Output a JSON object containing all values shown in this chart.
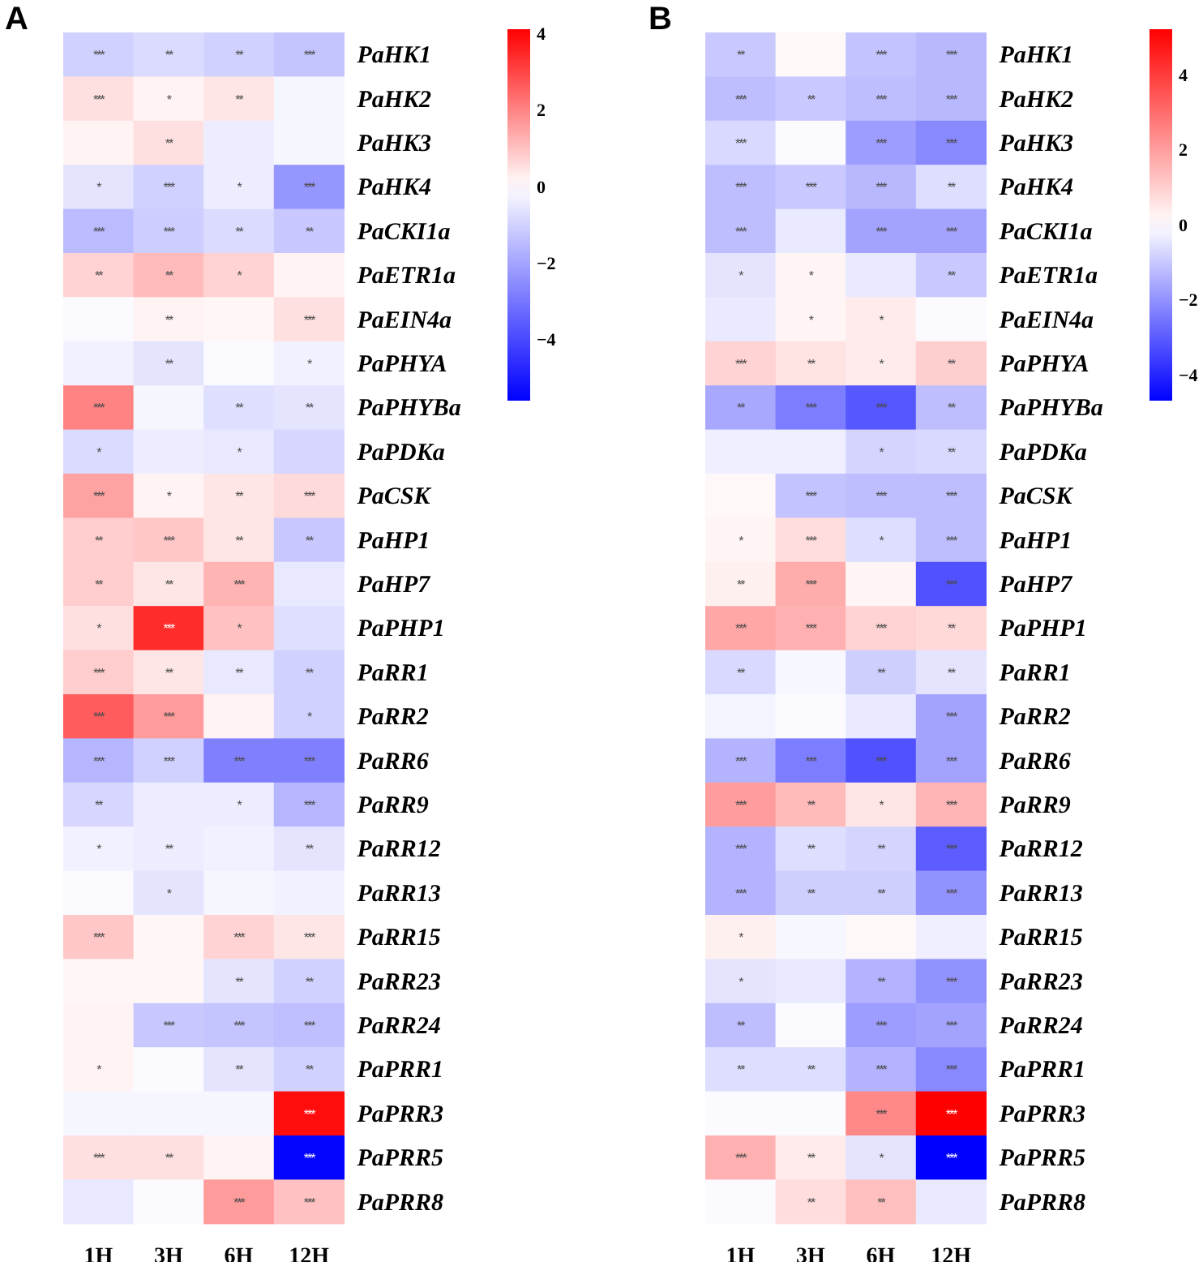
{
  "chart_data": [
    {
      "type": "heatmap",
      "title": "A",
      "categories": [
        "1H",
        "3H",
        "6H",
        "12H"
      ],
      "y_categories": [
        "PaHK1",
        "PaHK2",
        "PaHK3",
        "PaHK4",
        "PaCKI1a",
        "PaETR1a",
        "PaEIN4a",
        "PaPHYA",
        "PaPHYBa",
        "PaPDKa",
        "PaCSK",
        "PaHP1",
        "PaHP7",
        "PaPHP1",
        "PaRR1",
        "PaRR2",
        "PaRR6",
        "PaRR9",
        "PaRR12",
        "PaRR13",
        "PaRR15",
        "PaRR23",
        "PaRR24",
        "PaPRR1",
        "PaPRR3",
        "PaPRR5",
        "PaPRR8"
      ],
      "cells": [
        [
          -1.0,
          -0.8,
          -1.0,
          -1.3
        ],
        [
          0.5,
          0.2,
          0.4,
          -0.2
        ],
        [
          0.2,
          0.5,
          -0.4,
          -0.2
        ],
        [
          -0.6,
          -1.0,
          -0.4,
          -2.3
        ],
        [
          -1.5,
          -1.1,
          -0.8,
          -1.2
        ],
        [
          0.7,
          1.1,
          0.7,
          0.2
        ],
        [
          -0.1,
          0.2,
          0.15,
          0.5
        ],
        [
          -0.3,
          -0.6,
          -0.1,
          -0.3
        ],
        [
          2.0,
          -0.2,
          -0.7,
          -0.6
        ],
        [
          -0.8,
          -0.4,
          -0.5,
          -0.9
        ],
        [
          1.5,
          0.2,
          0.4,
          0.6
        ],
        [
          0.8,
          0.9,
          0.4,
          -1.2
        ],
        [
          0.8,
          0.4,
          1.2,
          -0.5
        ],
        [
          0.5,
          3.4,
          1.0,
          -0.7
        ],
        [
          0.8,
          0.4,
          -0.5,
          -1.0
        ],
        [
          2.6,
          1.6,
          0.2,
          -1.0
        ],
        [
          -1.6,
          -1.0,
          -2.8,
          -2.8
        ],
        [
          -0.9,
          -0.4,
          -0.4,
          -1.6
        ],
        [
          -0.3,
          -0.4,
          -0.3,
          -0.6
        ],
        [
          -0.1,
          -0.6,
          -0.2,
          -0.3
        ],
        [
          0.9,
          0.15,
          0.7,
          0.4
        ],
        [
          0.15,
          0.15,
          -0.6,
          -1.0
        ],
        [
          0.2,
          -1.2,
          -1.3,
          -1.4
        ],
        [
          0.2,
          -0.1,
          -0.6,
          -1.0
        ],
        [
          -0.2,
          -0.2,
          -0.2,
          3.9
        ],
        [
          0.5,
          0.5,
          0.2,
          -5.5
        ],
        [
          -0.5,
          -0.1,
          1.6,
          1.0
        ]
      ],
      "cell_labels": [
        [
          "***",
          "**",
          "**",
          "***"
        ],
        [
          "***",
          "*",
          "**",
          null
        ],
        [
          null,
          "**",
          null,
          null
        ],
        [
          "*",
          "***",
          "*",
          "***"
        ],
        [
          "***",
          "***",
          "**",
          "**"
        ],
        [
          "**",
          "**",
          "*",
          null
        ],
        [
          null,
          "**",
          null,
          "***"
        ],
        [
          null,
          "**",
          null,
          "*"
        ],
        [
          "***",
          null,
          "**",
          "**"
        ],
        [
          "*",
          null,
          "*",
          null
        ],
        [
          "***",
          "*",
          "**",
          "***"
        ],
        [
          "**",
          "***",
          "**",
          "**"
        ],
        [
          "**",
          "**",
          "***",
          null
        ],
        [
          "*",
          "***",
          "*",
          null
        ],
        [
          "***",
          "**",
          "**",
          "**"
        ],
        [
          "***",
          "***",
          null,
          "*"
        ],
        [
          "***",
          "***",
          "***",
          "***"
        ],
        [
          "**",
          null,
          "*",
          "***"
        ],
        [
          "*",
          "**",
          null,
          "**"
        ],
        [
          null,
          "*",
          null,
          null
        ],
        [
          "***",
          null,
          "***",
          "***"
        ],
        [
          null,
          null,
          "**",
          "**"
        ],
        [
          null,
          "***",
          "***",
          "***"
        ],
        [
          "*",
          null,
          "**",
          "**"
        ],
        [
          null,
          null,
          null,
          "***"
        ],
        [
          "***",
          "**",
          null,
          "***"
        ],
        [
          null,
          null,
          "***",
          "***"
        ]
      ],
      "clim": [
        -5.6,
        4.1
      ],
      "cticks": [
        -4,
        -2,
        0,
        2,
        4
      ]
    },
    {
      "type": "heatmap",
      "title": "B",
      "categories": [
        "1H",
        "3H",
        "6H",
        "12H"
      ],
      "y_categories": [
        "PaHK1",
        "PaHK2",
        "PaHK3",
        "PaHK4",
        "PaCKI1a",
        "PaETR1a",
        "PaEIN4a",
        "PaPHYA",
        "PaPHYBa",
        "PaPDKa",
        "PaCSK",
        "PaHP1",
        "PaHP7",
        "PaPHP1",
        "PaRR1",
        "PaRR2",
        "PaRR6",
        "PaRR9",
        "PaRR12",
        "PaRR13",
        "PaRR15",
        "PaRR23",
        "PaRR24",
        "PaPRR1",
        "PaPRR3",
        "PaPRR5",
        "PaPRR8"
      ],
      "cells": [
        [
          -1.0,
          0.15,
          -1.1,
          -1.3
        ],
        [
          -1.2,
          -1.0,
          -1.2,
          -1.3
        ],
        [
          -0.7,
          -0.1,
          -1.8,
          -2.2
        ],
        [
          -1.2,
          -1.0,
          -1.3,
          -0.6
        ],
        [
          -1.2,
          -0.4,
          -1.7,
          -1.7
        ],
        [
          -0.5,
          0.2,
          -0.4,
          -1.0
        ],
        [
          -0.4,
          0.2,
          0.4,
          -0.1
        ],
        [
          0.9,
          0.6,
          0.4,
          1.0
        ],
        [
          -1.6,
          -2.4,
          -3.1,
          -1.2
        ],
        [
          -0.3,
          -0.3,
          -0.8,
          -0.7
        ],
        [
          0.15,
          -1.1,
          -1.2,
          -1.2
        ],
        [
          0.2,
          0.7,
          -0.6,
          -1.2
        ],
        [
          0.3,
          1.7,
          0.2,
          -3.2
        ],
        [
          1.8,
          1.6,
          0.9,
          0.8
        ],
        [
          -0.7,
          -0.15,
          -0.9,
          -0.5
        ],
        [
          -0.2,
          -0.1,
          -0.4,
          -1.7
        ],
        [
          -1.4,
          -2.4,
          -3.2,
          -1.7
        ],
        [
          2.0,
          1.4,
          0.5,
          1.5
        ],
        [
          -1.4,
          -0.6,
          -0.8,
          -3.0
        ],
        [
          -1.4,
          -0.9,
          -0.9,
          -2.0
        ],
        [
          0.3,
          -0.15,
          0.15,
          -0.3
        ],
        [
          -0.5,
          -0.4,
          -1.4,
          -2.0
        ],
        [
          -1.2,
          -0.1,
          -1.8,
          -1.7
        ],
        [
          -0.6,
          -0.6,
          -1.4,
          -2.2
        ],
        [
          -0.1,
          -0.1,
          2.4,
          5.2
        ],
        [
          1.6,
          0.4,
          -0.5,
          -4.7
        ],
        [
          -0.1,
          0.7,
          1.3,
          -0.4
        ]
      ],
      "cell_labels": [
        [
          "**",
          null,
          "***",
          "***"
        ],
        [
          "***",
          "**",
          "***",
          "***"
        ],
        [
          "***",
          null,
          "***",
          "***"
        ],
        [
          "***",
          "***",
          "***",
          "**"
        ],
        [
          "***",
          null,
          "***",
          "***"
        ],
        [
          "*",
          "*",
          null,
          "**"
        ],
        [
          null,
          "*",
          "*",
          null
        ],
        [
          "***",
          "**",
          "*",
          "**"
        ],
        [
          "**",
          "***",
          "***",
          "**"
        ],
        [
          null,
          null,
          "*",
          "**"
        ],
        [
          null,
          "***",
          "***",
          "***"
        ],
        [
          "*",
          "***",
          "*",
          "***"
        ],
        [
          "**",
          "***",
          null,
          "***"
        ],
        [
          "***",
          "***",
          "***",
          "**"
        ],
        [
          "**",
          null,
          "**",
          "**"
        ],
        [
          null,
          null,
          null,
          "***"
        ],
        [
          "***",
          "***",
          "***",
          "***"
        ],
        [
          "***",
          "**",
          "*",
          "***"
        ],
        [
          "***",
          "**",
          "**",
          "***"
        ],
        [
          "***",
          "**",
          "**",
          "***"
        ],
        [
          "*",
          null,
          null,
          null
        ],
        [
          "*",
          null,
          "**",
          "***"
        ],
        [
          "**",
          null,
          "***",
          "***"
        ],
        [
          "**",
          "**",
          "***",
          "***"
        ],
        [
          null,
          null,
          "***",
          "***"
        ],
        [
          "***",
          "**",
          "*",
          "***"
        ],
        [
          null,
          "**",
          "**",
          null
        ]
      ],
      "clim": [
        -4.7,
        5.2
      ],
      "cticks": [
        -4,
        -2,
        0,
        2,
        4
      ]
    }
  ]
}
